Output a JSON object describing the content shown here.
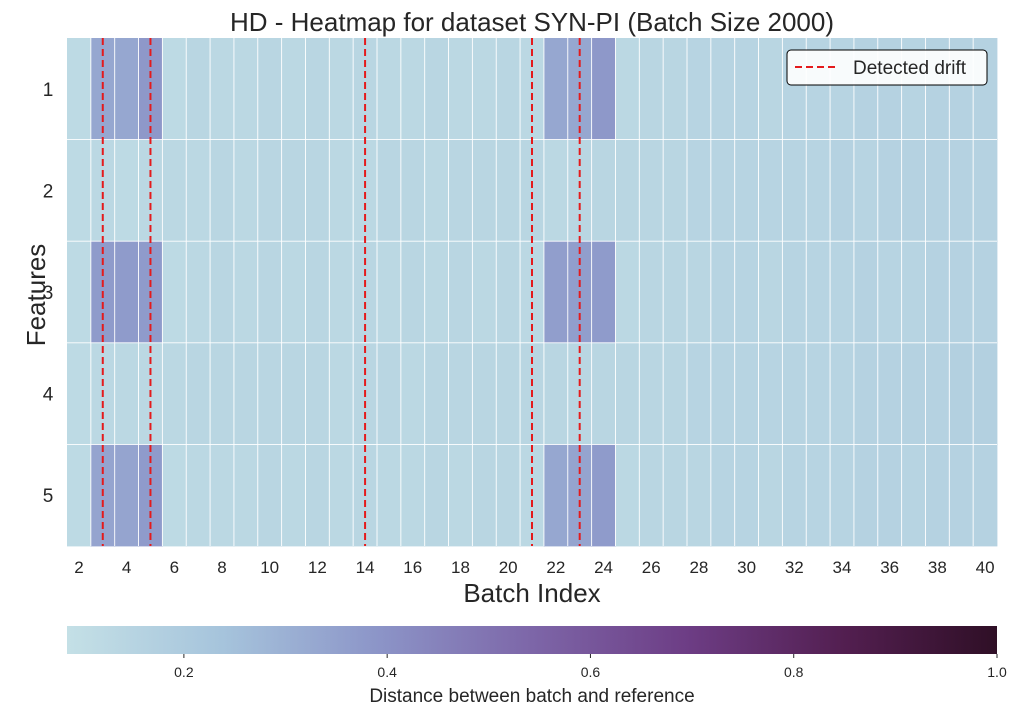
{
  "chart_data": {
    "type": "heatmap",
    "title": "HD - Heatmap for dataset SYN-PI (Batch Size 2000)",
    "xlabel": "Batch Index",
    "ylabel": "Features",
    "x": [
      2,
      3,
      4,
      5,
      6,
      7,
      8,
      9,
      10,
      11,
      12,
      13,
      14,
      15,
      16,
      17,
      18,
      19,
      20,
      21,
      22,
      23,
      24,
      25,
      26,
      27,
      28,
      29,
      30,
      31,
      32,
      33,
      34,
      35,
      36,
      37,
      38,
      39,
      40
    ],
    "x_tick_labels": [
      "2",
      "4",
      "6",
      "8",
      "10",
      "12",
      "14",
      "16",
      "18",
      "20",
      "22",
      "24",
      "26",
      "28",
      "30",
      "32",
      "34",
      "36",
      "38",
      "40"
    ],
    "y_tick_labels": [
      "1",
      "2",
      "3",
      "4",
      "5"
    ],
    "values": [
      [
        0.12,
        0.33,
        0.33,
        0.38,
        0.12,
        0.14,
        0.13,
        0.13,
        0.14,
        0.13,
        0.14,
        0.13,
        0.14,
        0.13,
        0.13,
        0.14,
        0.13,
        0.13,
        0.14,
        0.13,
        0.33,
        0.33,
        0.38,
        0.13,
        0.14,
        0.14,
        0.15,
        0.15,
        0.15,
        0.14,
        0.15,
        0.15,
        0.15,
        0.16,
        0.16,
        0.15,
        0.16,
        0.16,
        0.16
      ],
      [
        0.12,
        0.13,
        0.12,
        0.13,
        0.13,
        0.13,
        0.14,
        0.13,
        0.14,
        0.14,
        0.14,
        0.13,
        0.13,
        0.14,
        0.14,
        0.13,
        0.14,
        0.14,
        0.14,
        0.14,
        0.13,
        0.14,
        0.14,
        0.14,
        0.14,
        0.14,
        0.15,
        0.15,
        0.15,
        0.15,
        0.15,
        0.15,
        0.16,
        0.15,
        0.16,
        0.16,
        0.16,
        0.16,
        0.16
      ],
      [
        0.12,
        0.37,
        0.37,
        0.37,
        0.12,
        0.13,
        0.14,
        0.13,
        0.14,
        0.13,
        0.14,
        0.13,
        0.14,
        0.13,
        0.14,
        0.13,
        0.14,
        0.13,
        0.14,
        0.13,
        0.36,
        0.36,
        0.37,
        0.13,
        0.14,
        0.14,
        0.14,
        0.15,
        0.15,
        0.14,
        0.15,
        0.15,
        0.15,
        0.16,
        0.15,
        0.15,
        0.16,
        0.16,
        0.16
      ],
      [
        0.12,
        0.13,
        0.13,
        0.13,
        0.13,
        0.14,
        0.14,
        0.14,
        0.14,
        0.14,
        0.14,
        0.13,
        0.14,
        0.14,
        0.13,
        0.14,
        0.14,
        0.14,
        0.14,
        0.14,
        0.14,
        0.14,
        0.14,
        0.14,
        0.14,
        0.14,
        0.15,
        0.15,
        0.15,
        0.15,
        0.15,
        0.15,
        0.15,
        0.16,
        0.16,
        0.16,
        0.16,
        0.17,
        0.17
      ],
      [
        0.12,
        0.34,
        0.34,
        0.37,
        0.12,
        0.13,
        0.13,
        0.13,
        0.14,
        0.13,
        0.14,
        0.13,
        0.14,
        0.13,
        0.13,
        0.14,
        0.13,
        0.14,
        0.14,
        0.13,
        0.33,
        0.34,
        0.37,
        0.13,
        0.14,
        0.14,
        0.14,
        0.15,
        0.15,
        0.14,
        0.15,
        0.15,
        0.15,
        0.16,
        0.16,
        0.15,
        0.16,
        0.16,
        0.16
      ]
    ],
    "drift_batches": [
      3,
      5,
      14,
      21,
      23
    ],
    "legend": {
      "label": "Detected drift",
      "position": "top-right",
      "color": "#e41a1c",
      "linestyle": "dashed"
    },
    "colorbar": {
      "label": "Distance between batch and reference",
      "range": [
        0.085,
        1.0
      ],
      "ticks": [
        0.2,
        0.4,
        0.6,
        0.8,
        1.0
      ],
      "tick_labels": [
        "0.2",
        "0.4",
        "0.6",
        "0.8",
        "1.0"
      ],
      "orientation": "horizontal",
      "colormap": [
        "#c4e0e6",
        "#a6c4dc",
        "#8c95c8",
        "#7d66a8",
        "#6d3d85",
        "#531f51",
        "#2f0f26"
      ]
    },
    "grid": true
  }
}
